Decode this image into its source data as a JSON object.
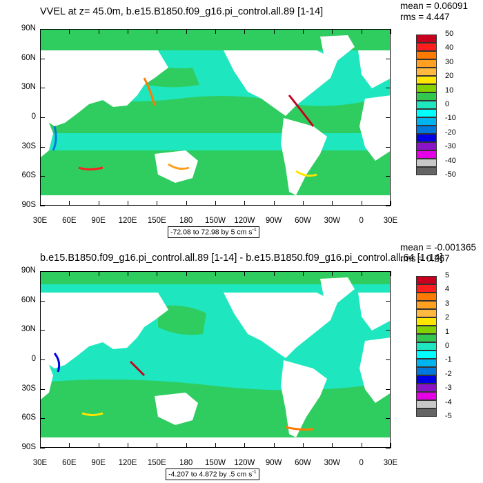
{
  "panels": [
    {
      "title": "VVEL at z=  45.0m, b.e15.B1850.f09_g16.pi_control.all.89 [1-14]",
      "mean": "mean = 0.06091",
      "rms": "rms = 4.447",
      "range_label": "-72.08 to 72.98 by 5 cm s",
      "range_unit_exp": "-1",
      "colorbar_labels": [
        "50",
        "40",
        "30",
        "20",
        "10",
        "0",
        "-10",
        "-20",
        "-30",
        "-40",
        "-50"
      ]
    },
    {
      "title": "b.e15.B1850.f09_g16.pi_control.all.89 [1-14] - b.e15.B1850.f09_g16.pi_control.all.64 [1-14]",
      "mean": "mean = -0.001365",
      "rms": "rms = 0.267",
      "range_label": "-4.207 to 4.872 by .5 cm s",
      "range_unit_exp": "-1",
      "colorbar_labels": [
        "5",
        "4",
        "3",
        "2",
        "1",
        "0",
        "-1",
        "-2",
        "-3",
        "-4",
        "-5"
      ]
    }
  ],
  "lat_labels": [
    "90N",
    "60N",
    "30N",
    "0",
    "30S",
    "60S",
    "90S"
  ],
  "lon_labels": [
    "30E",
    "60E",
    "90E",
    "120E",
    "150E",
    "180",
    "150W",
    "120W",
    "90W",
    "60W",
    "30W",
    "0",
    "30E"
  ],
  "colors": {
    "scale": [
      "#c8001e",
      "#ff1e1e",
      "#ff7a00",
      "#ffa020",
      "#ffb840",
      "#ffe600",
      "#82d200",
      "#32c850",
      "#1ee6be",
      "#00ffff",
      "#00b4f0",
      "#0078dc",
      "#0000e6",
      "#8c14c8",
      "#e600e6",
      "#c8c8c8",
      "#646464"
    ],
    "ocean_main": "#1ee6be",
    "ocean_green": "#32c850",
    "land": "#ffffff"
  }
}
